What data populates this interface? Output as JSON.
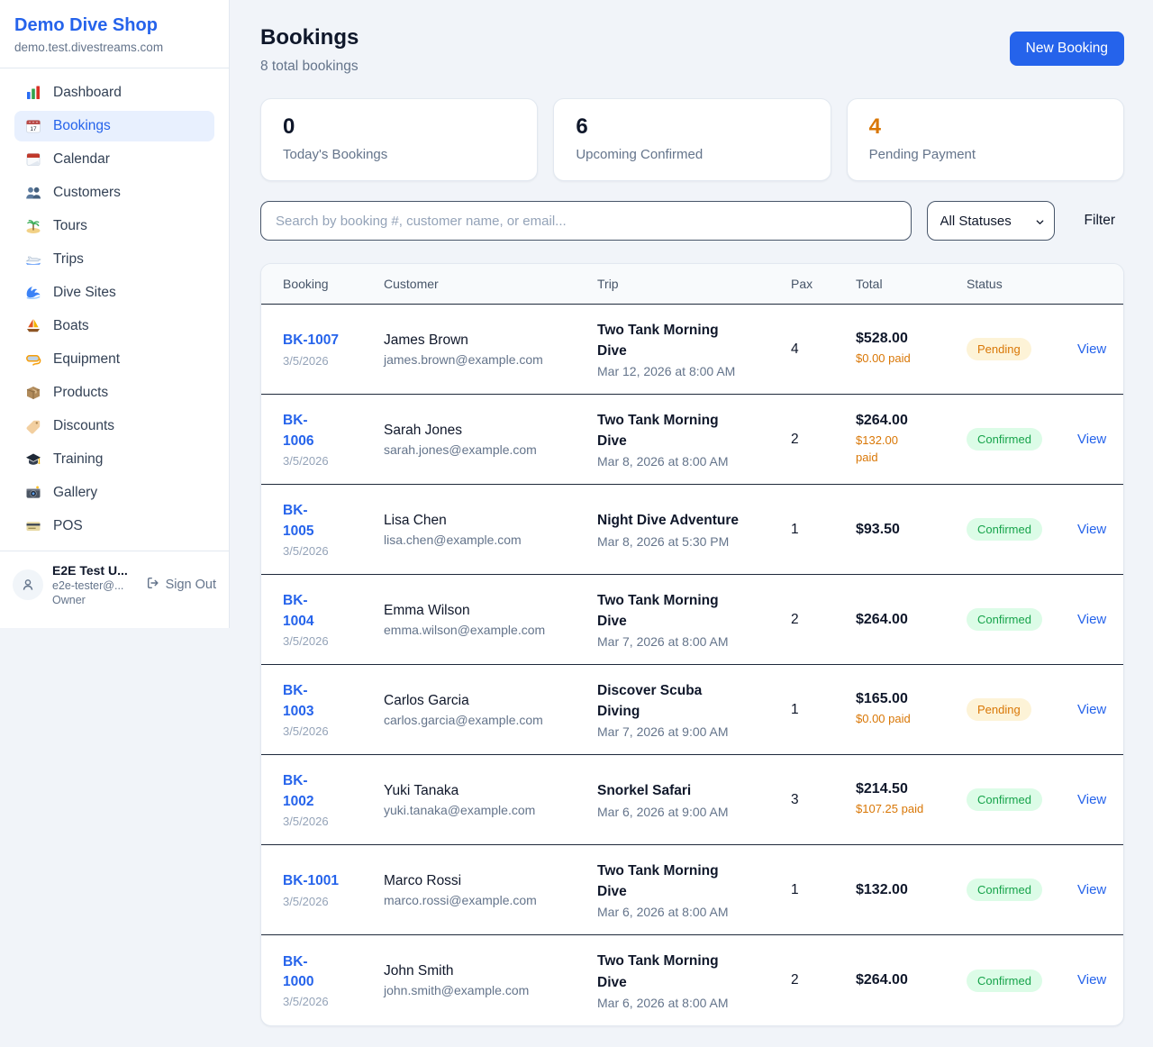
{
  "colors": {
    "accent": "#2563eb",
    "pending_text": "#d97706",
    "pending_bg": "#fdf3d7",
    "confirmed_text": "#16a34a",
    "confirmed_bg": "#dcfce7"
  },
  "sidebar": {
    "title": "Demo Dive Shop",
    "domain": "demo.test.divestreams.com",
    "items": [
      {
        "label": "Dashboard",
        "icon": "bar-chart",
        "active": false
      },
      {
        "label": "Bookings",
        "icon": "calendar",
        "active": true
      },
      {
        "label": "Calendar",
        "icon": "tear-off-calendar",
        "active": false
      },
      {
        "label": "Customers",
        "icon": "people",
        "active": false
      },
      {
        "label": "Tours",
        "icon": "palm-island",
        "active": false
      },
      {
        "label": "Trips",
        "icon": "speedboat",
        "active": false
      },
      {
        "label": "Dive Sites",
        "icon": "wave",
        "active": false
      },
      {
        "label": "Boats",
        "icon": "sailboat",
        "active": false
      },
      {
        "label": "Equipment",
        "icon": "diving-mask",
        "active": false
      },
      {
        "label": "Products",
        "icon": "package",
        "active": false
      },
      {
        "label": "Discounts",
        "icon": "tag",
        "active": false
      },
      {
        "label": "Training",
        "icon": "graduation-cap",
        "active": false
      },
      {
        "label": "Gallery",
        "icon": "camera",
        "active": false
      },
      {
        "label": "POS",
        "icon": "credit-card",
        "active": false
      }
    ],
    "user": {
      "name": "E2E Test U...",
      "email": "e2e-tester@...",
      "role": "Owner",
      "sign_out_label": "Sign Out"
    }
  },
  "header": {
    "title": "Bookings",
    "subtitle": "8 total bookings",
    "new_booking_label": "New Booking"
  },
  "stats": [
    {
      "value": "0",
      "label": "Today's Bookings",
      "color": "#0f172a"
    },
    {
      "value": "6",
      "label": "Upcoming Confirmed",
      "color": "#0f172a"
    },
    {
      "value": "4",
      "label": "Pending Payment",
      "color": "#d97706"
    }
  ],
  "filters": {
    "search_placeholder": "Search by booking #, customer name, or email...",
    "status_select_value": "All Statuses",
    "filter_label": "Filter"
  },
  "table": {
    "columns": [
      "Booking",
      "Customer",
      "Trip",
      "Pax",
      "Total",
      "Status"
    ],
    "view_label": "View",
    "rows": [
      {
        "id": "BK-1007",
        "date": "3/5/2026",
        "customer": "James Brown",
        "email": "james.brown@example.com",
        "trip": "Two Tank Morning\nDive",
        "trip_date": "Mar 12, 2026 at 8:00 AM",
        "pax": "4",
        "total": "$528.00",
        "paid": "$0.00 paid",
        "status": "Pending"
      },
      {
        "id": "BK-\n1006",
        "date": "3/5/2026",
        "customer": "Sarah Jones",
        "email": "sarah.jones@example.com",
        "trip": "Two Tank Morning\nDive",
        "trip_date": "Mar 8, 2026 at 8:00 AM",
        "pax": "2",
        "total": "$264.00",
        "paid": "$132.00\npaid",
        "status": "Confirmed"
      },
      {
        "id": "BK-\n1005",
        "date": "3/5/2026",
        "customer": "Lisa Chen",
        "email": "lisa.chen@example.com",
        "trip": "Night Dive Adventure",
        "trip_date": "Mar 8, 2026 at 5:30 PM",
        "pax": "1",
        "total": "$93.50",
        "paid": null,
        "status": "Confirmed"
      },
      {
        "id": "BK-\n1004",
        "date": "3/5/2026",
        "customer": "Emma Wilson",
        "email": "emma.wilson@example.com",
        "trip": "Two Tank Morning\nDive",
        "trip_date": "Mar 7, 2026 at 8:00 AM",
        "pax": "2",
        "total": "$264.00",
        "paid": null,
        "status": "Confirmed"
      },
      {
        "id": "BK-\n1003",
        "date": "3/5/2026",
        "customer": "Carlos Garcia",
        "email": "carlos.garcia@example.com",
        "trip": "Discover Scuba\nDiving",
        "trip_date": "Mar 7, 2026 at 9:00 AM",
        "pax": "1",
        "total": "$165.00",
        "paid": "$0.00 paid",
        "status": "Pending"
      },
      {
        "id": "BK-\n1002",
        "date": "3/5/2026",
        "customer": "Yuki Tanaka",
        "email": "yuki.tanaka@example.com",
        "trip": "Snorkel Safari",
        "trip_date": "Mar 6, 2026 at 9:00 AM",
        "pax": "3",
        "total": "$214.50",
        "paid": "$107.25 paid",
        "status": "Confirmed"
      },
      {
        "id": "BK-1001",
        "date": "3/5/2026",
        "customer": "Marco Rossi",
        "email": "marco.rossi@example.com",
        "trip": "Two Tank Morning\nDive",
        "trip_date": "Mar 6, 2026 at 8:00 AM",
        "pax": "1",
        "total": "$132.00",
        "paid": null,
        "status": "Confirmed"
      },
      {
        "id": "BK-\n1000",
        "date": "3/5/2026",
        "customer": "John Smith",
        "email": "john.smith@example.com",
        "trip": "Two Tank Morning\nDive",
        "trip_date": "Mar 6, 2026 at 8:00 AM",
        "pax": "2",
        "total": "$264.00",
        "paid": null,
        "status": "Confirmed"
      }
    ]
  }
}
